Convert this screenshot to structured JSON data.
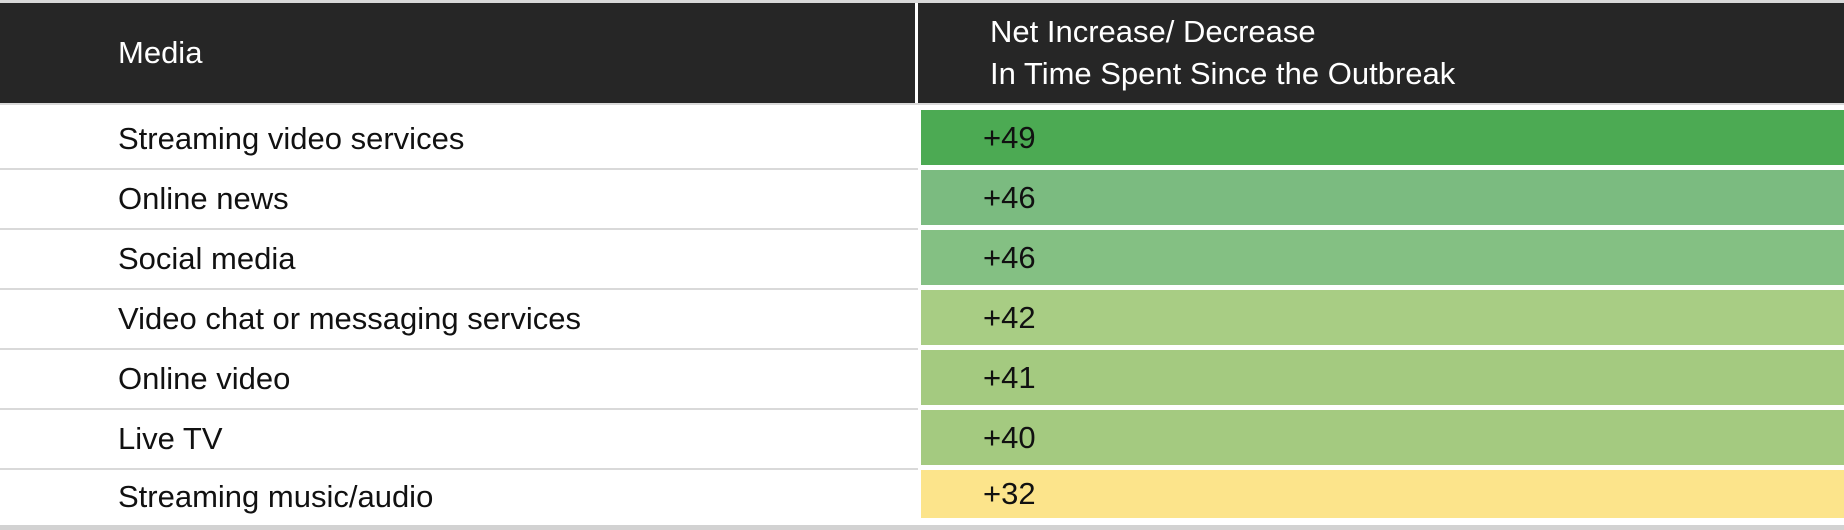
{
  "table": {
    "header": {
      "media_label": "Media",
      "value_label_line1": "Net Increase/ Decrease",
      "value_label_line2": "In Time Spent Since the Outbreak"
    },
    "rows": [
      {
        "media": "Streaming video services",
        "value": "+49",
        "color": "#4caa53"
      },
      {
        "media": "Online news",
        "value": "+46",
        "color": "#7bbb80"
      },
      {
        "media": "Social media",
        "value": "+46",
        "color": "#84c083"
      },
      {
        "media": "Video chat or messaging services",
        "value": "+42",
        "color": "#a8cd84"
      },
      {
        "media": "Online video",
        "value": "+41",
        "color": "#a4ca80"
      },
      {
        "media": "Live TV",
        "value": "+40",
        "color": "#a4ca80"
      },
      {
        "media": "Streaming music/audio",
        "value": "+32",
        "color": "#fce48b"
      }
    ]
  },
  "colors": {
    "header_background": "#262626",
    "header_text": "#ffffff",
    "body_text": "#111111",
    "grid_line": "#d9d9d9",
    "bottom_strip": "#d2d2d2",
    "scale_high_green": "#4caa53",
    "scale_mid_green": "#a4ca80",
    "scale_low_yellow": "#fce48b"
  },
  "chart_data": {
    "type": "table",
    "title": "Net Increase/ Decrease In Time Spent Since the Outbreak",
    "columns": [
      "Media",
      "Net Increase/ Decrease In Time Spent Since the Outbreak"
    ],
    "categories": [
      "Streaming video services",
      "Online news",
      "Social media",
      "Video chat or messaging services",
      "Online video",
      "Live TV",
      "Streaming music/audio"
    ],
    "values": [
      49,
      46,
      46,
      42,
      41,
      40,
      32
    ],
    "value_display": [
      "+49",
      "+46",
      "+46",
      "+42",
      "+41",
      "+40",
      "+32"
    ],
    "cell_colors": [
      "#4caa53",
      "#7bbb80",
      "#84c083",
      "#a8cd84",
      "#a4ca80",
      "#a4ca80",
      "#fce48b"
    ],
    "layout": {
      "value_cells_conditional_format": "color scale: dark green (highest) to yellow (lowest)",
      "header_style": "dark bar with white text",
      "grid": "light gray horizontal separators in media column, white gaps between colored value cells"
    }
  }
}
